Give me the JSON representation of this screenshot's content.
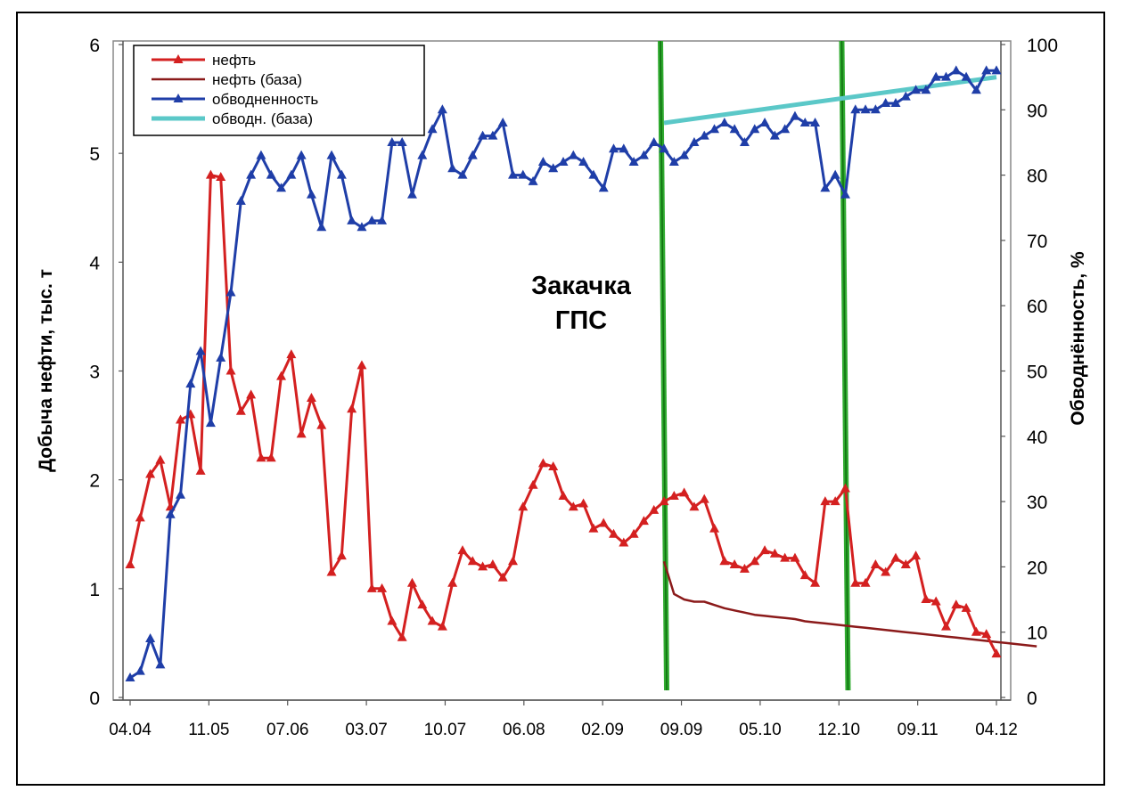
{
  "chart_data": {
    "type": "line",
    "ylabel": "Добыча нефти, тыс. т",
    "y2label": "Обводнённость, %",
    "ylim": [
      0,
      6
    ],
    "y2lim": [
      0,
      100
    ],
    "y_ticks": [
      "0",
      "1",
      "2",
      "3",
      "4",
      "5",
      "6"
    ],
    "y2_ticks": [
      "0",
      "10",
      "20",
      "30",
      "40",
      "50",
      "60",
      "70",
      "80",
      "90",
      "100"
    ],
    "x_ticks": [
      "04.04",
      "11.05",
      "07.06",
      "03.07",
      "10.07",
      "06.08",
      "02.09",
      "09.09",
      "05.10",
      "12.10",
      "09.11",
      "04.12"
    ],
    "annotation": [
      "Закачка",
      "ГПС"
    ],
    "markers_at_index": [
      53,
      71
    ],
    "legend_position": "top-left",
    "series": [
      {
        "name": "нефть",
        "axis": "left",
        "color": "#d42020",
        "marker": "triangle",
        "values": [
          1.22,
          1.65,
          2.05,
          2.18,
          1.75,
          2.55,
          2.6,
          2.08,
          4.8,
          4.78,
          3.0,
          2.63,
          2.78,
          2.2,
          2.2,
          2.95,
          3.15,
          2.42,
          2.75,
          2.5,
          1.15,
          1.3,
          2.65,
          3.05,
          1.0,
          1.0,
          0.7,
          0.55,
          1.05,
          0.85,
          0.7,
          0.65,
          1.05,
          1.35,
          1.25,
          1.2,
          1.22,
          1.1,
          1.25,
          1.75,
          1.95,
          2.15,
          2.12,
          1.85,
          1.75,
          1.78,
          1.55,
          1.6,
          1.5,
          1.42,
          1.5,
          1.62,
          1.72,
          1.8,
          1.85,
          1.88,
          1.75,
          1.82,
          1.55,
          1.25,
          1.22,
          1.18,
          1.25,
          1.35,
          1.32,
          1.28,
          1.28,
          1.12,
          1.05,
          1.8,
          1.8,
          1.92,
          1.05,
          1.05,
          1.22,
          1.15,
          1.28,
          1.22,
          1.3,
          0.9,
          0.88,
          0.65,
          0.85,
          0.82,
          0.6,
          0.58,
          0.4
        ]
      },
      {
        "name": "нефть (база)",
        "axis": "left",
        "color": "#8b1a1a",
        "marker": "none",
        "start_index": 53,
        "values": [
          1.25,
          0.95,
          0.9,
          0.88,
          0.88,
          0.85,
          0.82,
          0.8,
          0.78,
          0.76,
          0.75,
          0.74,
          0.73,
          0.72,
          0.7,
          0.69,
          0.68,
          0.67,
          0.66,
          0.65,
          0.64,
          0.63,
          0.62,
          0.61,
          0.6,
          0.59,
          0.58,
          0.57,
          0.56,
          0.55,
          0.54,
          0.53,
          0.52,
          0.51,
          0.5,
          0.49,
          0.48,
          0.47
        ]
      },
      {
        "name": "обводненность",
        "axis": "right",
        "color": "#1f3ea8",
        "marker": "triangle",
        "values": [
          3,
          4,
          9,
          5,
          28,
          31,
          48,
          53,
          42,
          52,
          62,
          76,
          80,
          83,
          80,
          78,
          80,
          83,
          77,
          72,
          83,
          80,
          73,
          72,
          73,
          73,
          85,
          85,
          77,
          83,
          87,
          90,
          81,
          80,
          83,
          86,
          86,
          88,
          80,
          80,
          79,
          82,
          81,
          82,
          83,
          82,
          80,
          78,
          84,
          84,
          82,
          83,
          85,
          84,
          82,
          83,
          85,
          86,
          87,
          88,
          87,
          85,
          87,
          88,
          86,
          87,
          89,
          88,
          88,
          78,
          80,
          77,
          90,
          90,
          90,
          91,
          91,
          92,
          93,
          93,
          95,
          95,
          96,
          95,
          93,
          96,
          96
        ]
      },
      {
        "name": "обводн. (база)",
        "axis": "right",
        "color": "#5bc8c8",
        "marker": "none",
        "start_index": 53,
        "values": [
          88,
          95
        ]
      }
    ]
  }
}
